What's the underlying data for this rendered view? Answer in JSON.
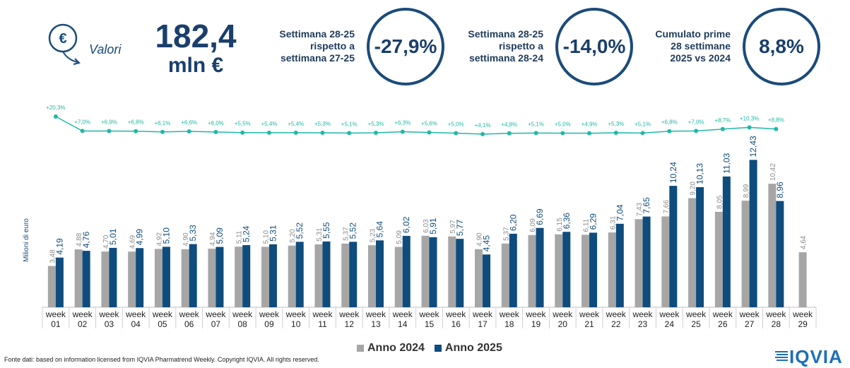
{
  "kpi": {
    "icon": "euro-down-icon",
    "valori_label": "Valori",
    "value": "182,4",
    "unit": "mln €",
    "box1_text": "Settimana 28-25\nrispetto a\nsettimana 27-25",
    "box1_value": "-27,9%",
    "box2_text": "Settimana 28-25\nrispetto a\nsettimana 28-24",
    "box2_value": "-14,0%",
    "box3_text": "Cumulato prime\n28 settimane\n2025 vs 2024",
    "box3_value": "8,8%"
  },
  "colors": {
    "series_2024": "#a6a6a6",
    "series_2025": "#0e4c7e",
    "growth_line": "#1fb9a5",
    "accent": "#1a4b7a"
  },
  "chart_data": {
    "type": "bar",
    "ylabel": "Milioni di euro",
    "categories": [
      "week 01",
      "week 02",
      "week 03",
      "week 04",
      "week 05",
      "week 06",
      "week 07",
      "week 08",
      "week 09",
      "week 10",
      "week 11",
      "week 12",
      "week 13",
      "week 14",
      "week 15",
      "week 16",
      "week 17",
      "week 18",
      "week 19",
      "week 20",
      "week 21",
      "week 22",
      "week 23",
      "week 24",
      "week 25",
      "week 26",
      "week 27",
      "week 28",
      "week 29"
    ],
    "series": [
      {
        "name": "Anno 2024",
        "values": [
          3.48,
          4.88,
          4.7,
          4.69,
          4.92,
          4.9,
          4.94,
          5.11,
          5.1,
          5.2,
          5.31,
          5.37,
          5.23,
          5.09,
          6.03,
          5.97,
          4.9,
          5.37,
          6.09,
          6.15,
          6.11,
          6.31,
          7.43,
          7.66,
          9.2,
          8.05,
          8.99,
          10.42,
          4.64
        ],
        "labels": [
          "3,48",
          "4,88",
          "4,70",
          "4,69",
          "4,92",
          "4,90",
          "4,94",
          "5,11",
          "5,10",
          "5,20",
          "5,31",
          "5,37",
          "5,23",
          "5,09",
          "6,03",
          "5,97",
          "4,90",
          "5,37",
          "6,09",
          "6,15",
          "6,11",
          "6,31",
          "7,43",
          "7,66",
          "9,20",
          "8,05",
          "8,99",
          "10,42",
          "4,64"
        ]
      },
      {
        "name": "Anno 2025",
        "values": [
          4.19,
          4.76,
          5.01,
          4.99,
          5.1,
          5.33,
          5.09,
          5.24,
          5.31,
          5.52,
          5.55,
          5.52,
          5.64,
          6.02,
          5.91,
          5.77,
          4.45,
          6.2,
          6.69,
          6.36,
          6.29,
          7.04,
          7.65,
          10.24,
          10.13,
          11.03,
          12.43,
          8.96,
          null
        ],
        "labels": [
          "4,19",
          "4,76",
          "5,01",
          "4,99",
          "5,10",
          "5,33",
          "5,09",
          "5,24",
          "5,31",
          "5,52",
          "5,55",
          "5,52",
          "5,64",
          "6,02",
          "5,91",
          "5,77",
          "4,45",
          "6,20",
          "6,69",
          "6,36",
          "6,29",
          "7,04",
          "7,65",
          "10,24",
          "10,13",
          "11,03",
          "12,43",
          "8,96",
          ""
        ]
      }
    ],
    "growth": {
      "values": [
        20.3,
        7.0,
        6.9,
        6.8,
        6.1,
        6.6,
        6.0,
        5.5,
        5.4,
        5.4,
        5.3,
        5.1,
        5.3,
        6.3,
        5.6,
        5.0,
        4.1,
        4.8,
        5.1,
        5.0,
        4.9,
        5.3,
        5.1,
        6.8,
        7.0,
        8.7,
        10.3,
        8.8
      ],
      "labels": [
        "+20,3%",
        "+7,0%",
        "+6,9%",
        "+6,8%",
        "+6,1%",
        "+6,6%",
        "+6,0%",
        "+5,5%",
        "+5,4%",
        "+5,4%",
        "+5,3%",
        "+5,1%",
        "+5,3%",
        "+6,3%",
        "+5,6%",
        "+5,0%",
        "+4,1%",
        "+4,8%",
        "+5,1%",
        "+5,0%",
        "+4,9%",
        "+5,3%",
        "+5,1%",
        "+6,8%",
        "+7,0%",
        "+8,7%",
        "+10,3%",
        "+8,8%"
      ]
    },
    "ylim": [
      0,
      14
    ],
    "legend": "bottom"
  },
  "footer": {
    "source": "Fonte dati: based on information licensed from IQVIA Pharmatrend Weekly. Copyright IQVIA. All rights reserved.",
    "logo_text": "IQVIA"
  }
}
